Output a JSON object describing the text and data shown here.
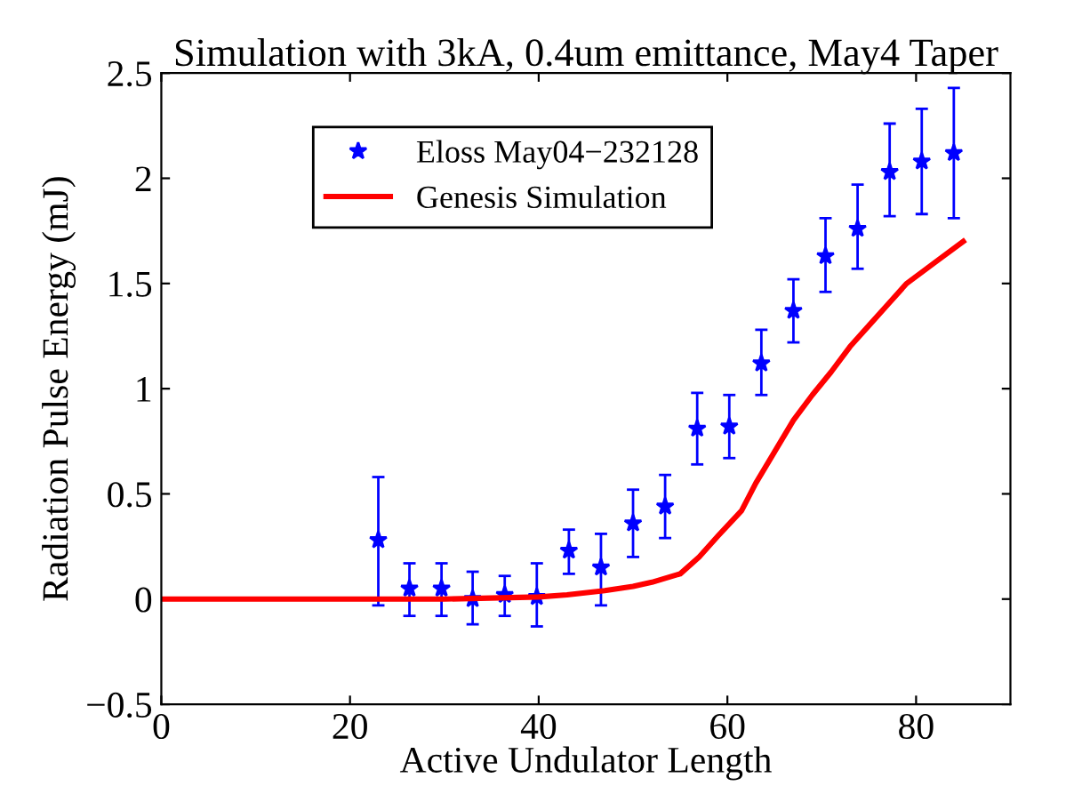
{
  "chart_data": {
    "type": "scatter",
    "title": "Simulation with 3kA, 0.4um emittance, May4 Taper",
    "xlabel": "Active Undulator Length",
    "ylabel": "Radiation Pulse Energy (mJ)",
    "xlim": [
      0,
      90
    ],
    "xticks": [
      0,
      20,
      40,
      60,
      80
    ],
    "ylim": [
      -0.5,
      2.5
    ],
    "yticks": [
      -0.5,
      0,
      0.5,
      1,
      1.5,
      2,
      2.5
    ],
    "grid": false,
    "legend": "top left",
    "series": [
      {
        "name": "Eloss May04−232128",
        "marker": "star",
        "color": "#0000ff",
        "x": [
          23,
          26.3,
          29.7,
          33,
          36.4,
          39.8,
          43.2,
          46.6,
          50,
          53.4,
          56.8,
          60.2,
          63.6,
          67,
          70.4,
          73.8,
          77.2,
          80.6,
          84
        ],
        "values": [
          0.28,
          0.05,
          0.05,
          0.0,
          0.02,
          0.01,
          0.23,
          0.15,
          0.36,
          0.44,
          0.81,
          0.82,
          1.12,
          1.37,
          1.63,
          1.76,
          2.03,
          2.08,
          2.12
        ],
        "errors": [
          [
            -0.03,
            0.58
          ],
          [
            -0.08,
            0.17
          ],
          [
            -0.08,
            0.17
          ],
          [
            -0.12,
            0.13
          ],
          [
            -0.08,
            0.11
          ],
          [
            -0.13,
            0.17
          ],
          [
            0.12,
            0.33
          ],
          [
            -0.03,
            0.31
          ],
          [
            0.2,
            0.52
          ],
          [
            0.29,
            0.59
          ],
          [
            0.64,
            0.98
          ],
          [
            0.67,
            0.97
          ],
          [
            0.97,
            1.28
          ],
          [
            1.22,
            1.52
          ],
          [
            1.46,
            1.81
          ],
          [
            1.57,
            1.97
          ],
          [
            1.82,
            2.26
          ],
          [
            1.83,
            2.33
          ],
          [
            1.81,
            2.43
          ]
        ]
      },
      {
        "name": "Genesis Simulation",
        "type": "line",
        "line_style": "solid",
        "color": "#ff0000",
        "x": [
          0,
          10,
          20,
          30,
          40,
          43,
          47,
          50,
          52,
          55,
          57,
          59,
          61.5,
          63,
          65,
          67,
          69,
          71,
          73,
          75,
          77,
          79,
          82,
          85
        ],
        "values": [
          0,
          0,
          0,
          0,
          0.01,
          0.02,
          0.04,
          0.06,
          0.08,
          0.12,
          0.2,
          0.3,
          0.42,
          0.55,
          0.7,
          0.85,
          0.97,
          1.08,
          1.2,
          1.3,
          1.4,
          1.5,
          1.6,
          1.7
        ]
      }
    ]
  }
}
